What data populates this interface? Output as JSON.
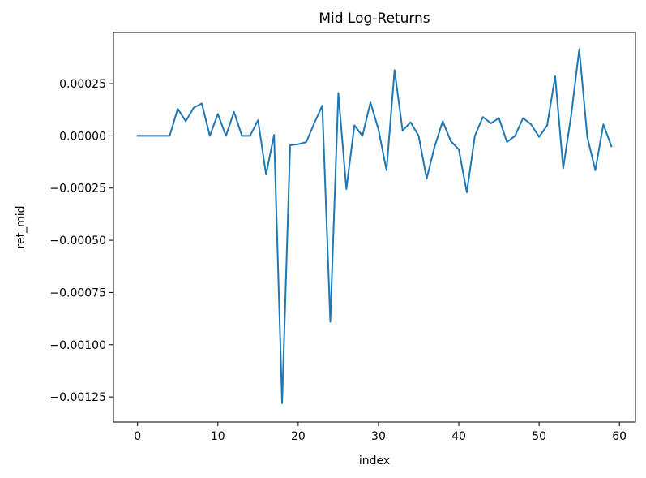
{
  "chart_data": {
    "type": "line",
    "title": "Mid Log-Returns",
    "xlabel": "index",
    "ylabel": "ret_mid",
    "xlim": [
      -3,
      62
    ],
    "ylim": [
      -0.00137,
      0.000495
    ],
    "xticks": [
      0,
      10,
      20,
      30,
      40,
      50,
      60
    ],
    "xtick_labels": [
      "0",
      "10",
      "20",
      "30",
      "40",
      "50",
      "60"
    ],
    "yticks": [
      0.00025,
      0.0,
      -0.00025,
      -0.0005,
      -0.00075,
      -0.001,
      -0.00125
    ],
    "ytick_labels": [
      "0.00025",
      "0.00000",
      "−0.00025",
      "−0.00050",
      "−0.00075",
      "−0.00100",
      "−0.00125"
    ],
    "grid": false,
    "series": [
      {
        "color": "#1f77b4",
        "x": [
          0,
          1,
          2,
          3,
          4,
          5,
          6,
          7,
          8,
          9,
          10,
          11,
          12,
          13,
          14,
          15,
          16,
          17,
          18,
          19,
          20,
          21,
          22,
          23,
          24,
          25,
          26,
          27,
          28,
          29,
          30,
          31,
          32,
          33,
          34,
          35,
          36,
          37,
          38,
          39,
          40,
          41,
          42,
          43,
          44,
          45,
          46,
          47,
          48,
          49,
          50,
          51,
          52,
          53,
          54,
          55,
          56,
          57,
          58,
          59
        ],
        "y": [
          0.0,
          0.0,
          0.0,
          0.0,
          0.0,
          0.00013,
          7e-05,
          0.000135,
          0.000155,
          0.0,
          0.000105,
          0.0,
          0.000115,
          0.0,
          0.0,
          7.5e-05,
          -0.000185,
          5e-06,
          -0.00128,
          -4.5e-05,
          -4e-05,
          -3e-05,
          6e-05,
          0.000145,
          -0.00089,
          0.000205,
          -0.000255,
          5e-05,
          0.0,
          0.00016,
          3e-05,
          -0.000165,
          0.000315,
          2.5e-05,
          6.5e-05,
          0.0,
          -0.000205,
          -5e-05,
          7e-05,
          -2.5e-05,
          -6.5e-05,
          -0.00027,
          0.0,
          9e-05,
          6e-05,
          8.5e-05,
          -3e-05,
          0.0,
          8.5e-05,
          5.5e-05,
          -5e-06,
          5e-05,
          0.000285,
          -0.000155,
          0.0001,
          0.000415,
          -5e-06,
          -0.000165,
          5.5e-05,
          -5e-05
        ]
      }
    ]
  }
}
